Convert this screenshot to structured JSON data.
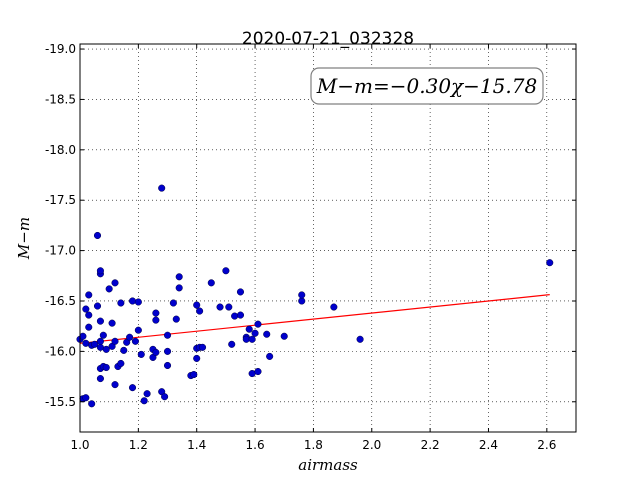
{
  "chart_data": {
    "type": "scatter",
    "title": "2020-07-21_032328",
    "xlabel": "airmass",
    "ylabel": "M−m",
    "xlim": [
      1.0,
      2.7
    ],
    "ylim": [
      -19.05,
      -15.2
    ],
    "y_inverted": true,
    "grid": true,
    "x_ticks": [
      "1.0",
      "1.2",
      "1.4",
      "1.6",
      "1.8",
      "2.0",
      "2.2",
      "2.4",
      "2.6"
    ],
    "y_ticks": [
      "-15.5",
      "-16.0",
      "-16.5",
      "-17.0",
      "-17.5",
      "-18.0",
      "-18.5",
      "-19.0"
    ],
    "annotation": "M−m=−0.30χ−15.78",
    "fit": {
      "slope": -0.3,
      "intercept": -15.78,
      "x_range": [
        1.0,
        2.61
      ],
      "color": "#ff0000"
    },
    "point_color": "#0000cc",
    "points": [
      [
        1.01,
        -15.53
      ],
      [
        1.02,
        -15.54
      ],
      [
        1.04,
        -15.48
      ],
      [
        1.07,
        -15.73
      ],
      [
        1.07,
        -15.83
      ],
      [
        1.08,
        -15.85
      ],
      [
        1.09,
        -15.84
      ],
      [
        1.0,
        -16.12
      ],
      [
        1.01,
        -16.15
      ],
      [
        1.02,
        -16.08
      ],
      [
        1.03,
        -16.24
      ],
      [
        1.04,
        -16.06
      ],
      [
        1.05,
        -16.07
      ],
      [
        1.07,
        -16.04
      ],
      [
        1.07,
        -16.1
      ],
      [
        1.08,
        -16.16
      ],
      [
        1.09,
        -16.02
      ],
      [
        1.11,
        -16.05
      ],
      [
        1.12,
        -16.1
      ],
      [
        1.07,
        -16.3
      ],
      [
        1.11,
        -16.28
      ],
      [
        1.02,
        -16.42
      ],
      [
        1.03,
        -16.36
      ],
      [
        1.03,
        -16.56
      ],
      [
        1.06,
        -16.45
      ],
      [
        1.1,
        -16.62
      ],
      [
        1.12,
        -16.68
      ],
      [
        1.07,
        -16.77
      ],
      [
        1.07,
        -16.8
      ],
      [
        1.06,
        -17.15
      ],
      [
        1.12,
        -15.67
      ],
      [
        1.13,
        -15.85
      ],
      [
        1.14,
        -15.88
      ],
      [
        1.15,
        -16.01
      ],
      [
        1.16,
        -16.09
      ],
      [
        1.17,
        -16.14
      ],
      [
        1.18,
        -15.64
      ],
      [
        1.14,
        -16.48
      ],
      [
        1.18,
        -16.5
      ],
      [
        1.2,
        -16.49
      ],
      [
        1.19,
        -16.1
      ],
      [
        1.2,
        -16.21
      ],
      [
        1.21,
        -15.97
      ],
      [
        1.22,
        -15.51
      ],
      [
        1.23,
        -15.58
      ],
      [
        1.25,
        -15.94
      ],
      [
        1.25,
        -16.02
      ],
      [
        1.26,
        -15.99
      ],
      [
        1.26,
        -16.31
      ],
      [
        1.26,
        -16.38
      ],
      [
        1.28,
        -15.6
      ],
      [
        1.29,
        -15.55
      ],
      [
        1.3,
        -15.86
      ],
      [
        1.3,
        -16.0
      ],
      [
        1.3,
        -16.16
      ],
      [
        1.32,
        -16.48
      ],
      [
        1.33,
        -16.32
      ],
      [
        1.34,
        -16.63
      ],
      [
        1.34,
        -16.74
      ],
      [
        1.28,
        -17.62
      ],
      [
        1.38,
        -15.76
      ],
      [
        1.39,
        -15.77
      ],
      [
        1.4,
        -15.93
      ],
      [
        1.4,
        -16.03
      ],
      [
        1.41,
        -16.04
      ],
      [
        1.4,
        -16.46
      ],
      [
        1.41,
        -16.4
      ],
      [
        1.42,
        -16.04
      ],
      [
        1.45,
        -16.68
      ],
      [
        1.48,
        -16.44
      ],
      [
        1.5,
        -16.8
      ],
      [
        1.51,
        -16.44
      ],
      [
        1.52,
        -16.07
      ],
      [
        1.53,
        -16.35
      ],
      [
        1.55,
        -16.36
      ],
      [
        1.55,
        -16.59
      ],
      [
        1.57,
        -16.14
      ],
      [
        1.57,
        -16.12
      ],
      [
        1.58,
        -16.22
      ],
      [
        1.59,
        -15.78
      ],
      [
        1.59,
        -16.12
      ],
      [
        1.6,
        -16.18
      ],
      [
        1.61,
        -15.8
      ],
      [
        1.61,
        -16.27
      ],
      [
        1.64,
        -16.17
      ],
      [
        1.65,
        -15.95
      ],
      [
        1.7,
        -16.15
      ],
      [
        1.76,
        -16.5
      ],
      [
        1.76,
        -16.56
      ],
      [
        1.87,
        -16.44
      ],
      [
        1.96,
        -16.12
      ],
      [
        2.61,
        -16.88
      ]
    ]
  }
}
